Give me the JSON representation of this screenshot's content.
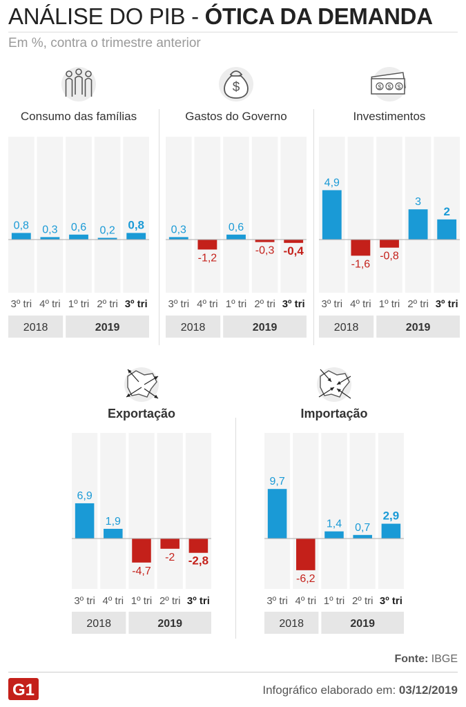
{
  "header": {
    "title_light": "ANÁLISE DO PIB - ",
    "title_bold": "ÓTICA DA DEMANDA",
    "subtitle": "Em %, contra o trimestre anterior"
  },
  "colors": {
    "positive": "#1a9ad6",
    "negative": "#c4201a",
    "column_bg": "#f4f4f4",
    "year_bg": "#e6e6e6"
  },
  "chart_data": [
    {
      "type": "bar",
      "title": "Consumo das famílias",
      "icon": "family-icon",
      "categories": [
        "3º tri",
        "4º tri",
        "1º tri",
        "2º tri",
        "3º tri"
      ],
      "value_labels": [
        "0,8",
        "0,3",
        "0,6",
        "0,2",
        "0,8"
      ],
      "values": [
        0.8,
        0.3,
        0.6,
        0.2,
        0.8
      ],
      "highlight_index": 4,
      "years": [
        {
          "label": "2018",
          "span": 2
        },
        {
          "label": "2019",
          "span": 3
        }
      ],
      "ylim": [
        -3,
        10
      ]
    },
    {
      "type": "bar",
      "title": "Gastos do Governo",
      "icon": "money-bag-icon",
      "categories": [
        "3º tri",
        "4º tri",
        "1º tri",
        "2º tri",
        "3º tri"
      ],
      "value_labels": [
        "0,3",
        "-1,2",
        "0,6",
        "-0,3",
        "-0,4"
      ],
      "values": [
        0.3,
        -1.2,
        0.6,
        -0.3,
        -0.4
      ],
      "highlight_index": 4,
      "years": [
        {
          "label": "2018",
          "span": 2
        },
        {
          "label": "2019",
          "span": 3
        }
      ],
      "ylim": [
        -3,
        10
      ]
    },
    {
      "type": "bar",
      "title": "Investimentos",
      "icon": "banknotes-icon",
      "categories": [
        "3º tri",
        "4º tri",
        "1º tri",
        "2º tri",
        "3º tri"
      ],
      "value_labels": [
        "4,9",
        "-1,6",
        "-0,8",
        "3",
        "2"
      ],
      "values": [
        4.9,
        -1.6,
        -0.8,
        3,
        2
      ],
      "highlight_index": 4,
      "years": [
        {
          "label": "2018",
          "span": 2
        },
        {
          "label": "2019",
          "span": 3
        }
      ],
      "ylim": [
        -3,
        10
      ]
    },
    {
      "type": "bar",
      "title": "Exportação",
      "icon": "export-map-icon",
      "categories": [
        "3º tri",
        "4º tri",
        "1º tri",
        "2º tri",
        "3º tri"
      ],
      "value_labels": [
        "6,9",
        "1,9",
        "-4,7",
        "-2",
        "-2,8"
      ],
      "values": [
        6.9,
        1.9,
        -4.7,
        -2,
        -2.8
      ],
      "highlight_index": 4,
      "years": [
        {
          "label": "2018",
          "span": 2
        },
        {
          "label": "2019",
          "span": 3
        }
      ],
      "ylim": [
        -10,
        10
      ]
    },
    {
      "type": "bar",
      "title": "Importação",
      "icon": "import-map-icon",
      "categories": [
        "3º tri",
        "4º tri",
        "1º tri",
        "2º tri",
        "3º tri"
      ],
      "value_labels": [
        "9,7",
        "-6,2",
        "1,4",
        "0,7",
        "2,9"
      ],
      "values": [
        9.7,
        -6.2,
        1.4,
        0.7,
        2.9
      ],
      "highlight_index": 4,
      "years": [
        {
          "label": "2018",
          "span": 2
        },
        {
          "label": "2019",
          "span": 3
        }
      ],
      "ylim": [
        -10,
        10
      ]
    }
  ],
  "footer": {
    "source_label": "Fonte:",
    "source_value": "IBGE",
    "logo_text": "G1",
    "credit_label": "Infográfico elaborado em:",
    "credit_date": "03/12/2019"
  }
}
